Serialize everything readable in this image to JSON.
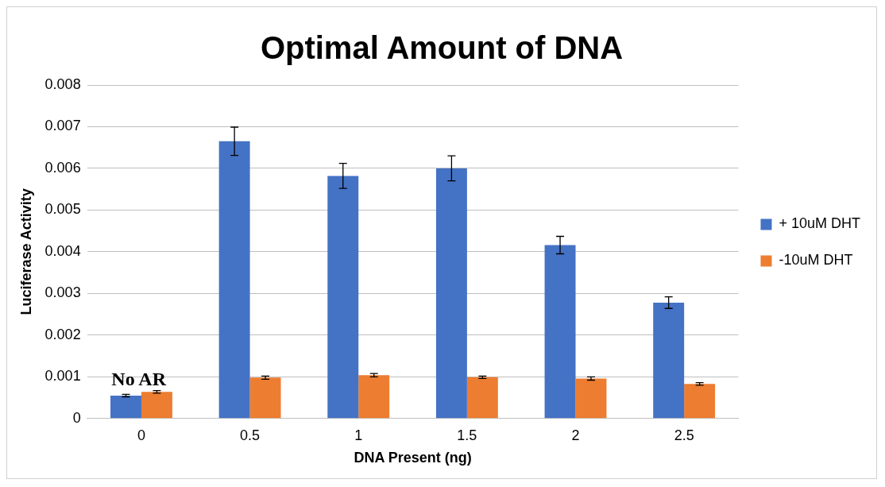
{
  "chart_data": {
    "type": "bar",
    "title": "Optimal Amount of DNA",
    "xlabel": "DNA Present (ng)",
    "ylabel": "Luciferase Activity",
    "categories": [
      "0",
      "0.5",
      "1",
      "1.5",
      "2",
      "2.5"
    ],
    "series": [
      {
        "name": "+ 10uM DHT",
        "color": "#4472c4",
        "values": [
          0.00055,
          0.00665,
          0.00582,
          0.006,
          0.00416,
          0.00278
        ],
        "errors": [
          3e-05,
          0.00034,
          0.0003,
          0.0003,
          0.00021,
          0.00014
        ]
      },
      {
        "name": "-10uM DHT",
        "color": "#ed7d31",
        "values": [
          0.00064,
          0.00098,
          0.00104,
          0.00099,
          0.00096,
          0.00083
        ],
        "errors": [
          3e-05,
          4e-05,
          4e-05,
          3e-05,
          4e-05,
          3e-05
        ]
      }
    ],
    "ylim": [
      0,
      0.008
    ],
    "yticks": [
      0,
      0.001,
      0.002,
      0.003,
      0.004,
      0.005,
      0.006,
      0.007,
      0.008
    ],
    "grid": "y",
    "legend": "right",
    "annotations": [
      "No AR"
    ]
  }
}
